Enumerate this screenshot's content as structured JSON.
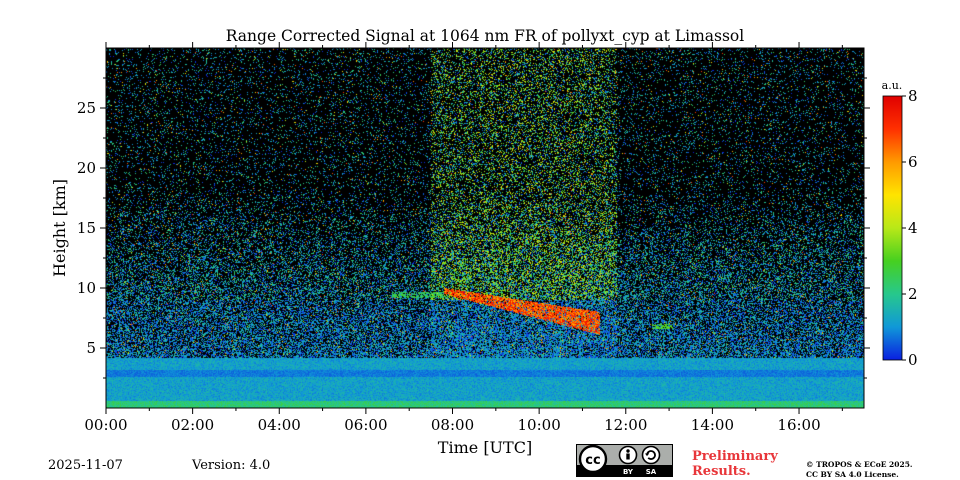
{
  "chart_data": {
    "type": "heatmap",
    "title": "Range Corrected Signal at 1064 nm FR of pollyxt_cyp at Limassol",
    "xlabel": "Time [UTC]",
    "ylabel": "Height [km]",
    "xlim": [
      0,
      17.5
    ],
    "ylim": [
      0,
      30
    ],
    "x_ticks": [
      0,
      2,
      4,
      6,
      8,
      10,
      12,
      14,
      16
    ],
    "x_tick_labels": [
      "00:00",
      "02:00",
      "04:00",
      "06:00",
      "08:00",
      "10:00",
      "12:00",
      "14:00",
      "16:00"
    ],
    "y_ticks": [
      5,
      10,
      15,
      20,
      25
    ],
    "y_tick_labels": [
      "5",
      "10",
      "15",
      "20",
      "25"
    ],
    "colorbar": {
      "label": "a.u.",
      "range": [
        0,
        8
      ],
      "ticks": [
        0,
        2,
        4,
        6,
        8
      ],
      "tick_labels": [
        "0",
        "2",
        "4",
        "6",
        "8"
      ],
      "colors": [
        "#0a1fe0",
        "#1098d8",
        "#27c88c",
        "#46d020",
        "#b8e818",
        "#ffe400",
        "#ff9a00",
        "#ff3000",
        "#e00000"
      ]
    },
    "features": [
      {
        "name": "boundary layer",
        "time_start": 0,
        "time_end": 17.5,
        "height_top_km": 4.2,
        "value": 1.5
      },
      {
        "name": "cirrus cloud",
        "time_start": 7.8,
        "time_end": 11.4,
        "height_start_km": 10.0,
        "height_end_km": 6.2,
        "value": 8
      },
      {
        "name": "thin aerosol layer",
        "time_start": 6.6,
        "time_end": 7.8,
        "height_km": 9.4,
        "value": 2.5
      },
      {
        "name": "thin cloud patch",
        "time_start": 12.6,
        "time_end": 13.1,
        "height_km": 6.8,
        "value": 3
      }
    ]
  },
  "footer": {
    "date": "2025-11-07",
    "version": "Version: 4.0",
    "preliminary": [
      "Preliminary",
      "Results."
    ],
    "copyright": [
      "© TROPOS & ECoE 2025.",
      "CC BY SA 4.0 License."
    ],
    "license_badge": {
      "cc": "cc",
      "by": "BY",
      "sa": "SA"
    }
  }
}
